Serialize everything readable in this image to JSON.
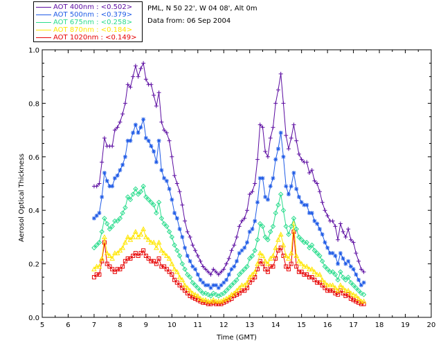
{
  "legend": [
    {
      "label": "AOT  400nm : <0.502>",
      "color": "#5a0aa0"
    },
    {
      "label": "AOT  500nm : <0.379>",
      "color": "#1e5ae6"
    },
    {
      "label": "AOT  675nm : <0.258>",
      "color": "#28dc8c"
    },
    {
      "label": "AOT  870nm : <0.184>",
      "color": "#ffe600"
    },
    {
      "label": "AOT 1020nm : <0.149>",
      "color": "#e60000"
    }
  ],
  "info": {
    "location": "PML, N 50 22', W 04 08', Alt 0m",
    "date": "Data from: 06 Sep 2004"
  },
  "chart_data": {
    "type": "line",
    "title": "",
    "xlabel": "Time (GMT)",
    "ylabel": "Aerosol Optical Thickness",
    "xlim": [
      5,
      20
    ],
    "ylim": [
      0.0,
      1.0
    ],
    "xticks": [
      "5",
      "6",
      "7",
      "8",
      "9",
      "10",
      "11",
      "12",
      "13",
      "14",
      "15",
      "16",
      "17",
      "18",
      "19",
      "20"
    ],
    "yticks": [
      "0.0",
      "0.2",
      "0.4",
      "0.6",
      "0.8",
      "1.0"
    ],
    "x": [
      7.0,
      7.1,
      7.2,
      7.3,
      7.4,
      7.5,
      7.6,
      7.7,
      7.8,
      7.9,
      8.0,
      8.1,
      8.2,
      8.3,
      8.4,
      8.5,
      8.6,
      8.7,
      8.8,
      8.9,
      9.0,
      9.1,
      9.2,
      9.3,
      9.4,
      9.5,
      9.6,
      9.7,
      9.8,
      9.9,
      10.0,
      10.1,
      10.2,
      10.3,
      10.4,
      10.5,
      10.6,
      10.7,
      10.8,
      10.9,
      11.0,
      11.1,
      11.2,
      11.3,
      11.4,
      11.5,
      11.6,
      11.7,
      11.8,
      11.9,
      12.0,
      12.1,
      12.2,
      12.3,
      12.4,
      12.5,
      12.6,
      12.7,
      12.8,
      12.9,
      13.0,
      13.1,
      13.2,
      13.3,
      13.4,
      13.5,
      13.6,
      13.7,
      13.8,
      13.9,
      14.0,
      14.1,
      14.2,
      14.3,
      14.4,
      14.5,
      14.6,
      14.7,
      14.8,
      14.9,
      15.0,
      15.1,
      15.2,
      15.3,
      15.4,
      15.5,
      15.6,
      15.7,
      15.8,
      15.9,
      16.0,
      16.1,
      16.2,
      16.3,
      16.4,
      16.5,
      16.6,
      16.7,
      16.8,
      16.9,
      17.0,
      17.1,
      17.2,
      17.3,
      17.4
    ],
    "series": [
      {
        "name": "AOT 400nm",
        "color": "#5a0aa0",
        "marker": "plus",
        "values": [
          0.49,
          0.49,
          0.5,
          0.58,
          0.67,
          0.64,
          0.64,
          0.64,
          0.7,
          0.71,
          0.73,
          0.76,
          0.8,
          0.87,
          0.86,
          0.9,
          0.94,
          0.9,
          0.93,
          0.95,
          0.89,
          0.87,
          0.87,
          0.83,
          0.79,
          0.84,
          0.73,
          0.7,
          0.69,
          0.66,
          0.6,
          0.53,
          0.5,
          0.47,
          0.42,
          0.36,
          0.32,
          0.3,
          0.27,
          0.25,
          0.23,
          0.21,
          0.19,
          0.18,
          0.17,
          0.16,
          0.18,
          0.17,
          0.16,
          0.17,
          0.18,
          0.2,
          0.22,
          0.25,
          0.27,
          0.3,
          0.34,
          0.36,
          0.37,
          0.4,
          0.46,
          0.47,
          0.5,
          0.59,
          0.72,
          0.71,
          0.62,
          0.6,
          0.67,
          0.71,
          0.8,
          0.85,
          0.91,
          0.8,
          0.68,
          0.63,
          0.67,
          0.72,
          0.66,
          0.61,
          0.59,
          0.58,
          0.58,
          0.54,
          0.55,
          0.51,
          0.5,
          0.47,
          0.43,
          0.4,
          0.38,
          0.36,
          0.36,
          0.34,
          0.29,
          0.35,
          0.32,
          0.3,
          0.33,
          0.29,
          0.28,
          0.24,
          0.21,
          0.18,
          0.17
        ]
      },
      {
        "name": "AOT 500nm",
        "color": "#1e5ae6",
        "marker": "star",
        "values": [
          0.37,
          0.38,
          0.39,
          0.45,
          0.54,
          0.51,
          0.49,
          0.49,
          0.52,
          0.53,
          0.55,
          0.57,
          0.6,
          0.66,
          0.66,
          0.69,
          0.72,
          0.69,
          0.71,
          0.74,
          0.67,
          0.66,
          0.64,
          0.62,
          0.58,
          0.66,
          0.55,
          0.52,
          0.51,
          0.48,
          0.44,
          0.39,
          0.37,
          0.33,
          0.3,
          0.26,
          0.23,
          0.21,
          0.19,
          0.18,
          0.16,
          0.14,
          0.13,
          0.12,
          0.12,
          0.11,
          0.12,
          0.12,
          0.11,
          0.12,
          0.13,
          0.14,
          0.16,
          0.18,
          0.19,
          0.21,
          0.24,
          0.25,
          0.26,
          0.28,
          0.32,
          0.33,
          0.36,
          0.43,
          0.52,
          0.52,
          0.45,
          0.44,
          0.49,
          0.52,
          0.59,
          0.63,
          0.69,
          0.6,
          0.49,
          0.46,
          0.49,
          0.54,
          0.48,
          0.45,
          0.43,
          0.42,
          0.42,
          0.39,
          0.39,
          0.36,
          0.35,
          0.33,
          0.31,
          0.28,
          0.26,
          0.24,
          0.24,
          0.23,
          0.2,
          0.24,
          0.22,
          0.2,
          0.21,
          0.19,
          0.18,
          0.16,
          0.14,
          0.12,
          0.13
        ]
      },
      {
        "name": "AOT 675nm",
        "color": "#28dc8c",
        "marker": "diamond",
        "values": [
          0.26,
          0.27,
          0.28,
          0.32,
          0.37,
          0.35,
          0.33,
          0.34,
          0.36,
          0.36,
          0.37,
          0.39,
          0.41,
          0.45,
          0.44,
          0.46,
          0.48,
          0.46,
          0.47,
          0.49,
          0.45,
          0.44,
          0.43,
          0.42,
          0.39,
          0.43,
          0.37,
          0.35,
          0.34,
          0.32,
          0.3,
          0.27,
          0.25,
          0.23,
          0.2,
          0.18,
          0.16,
          0.15,
          0.13,
          0.12,
          0.11,
          0.1,
          0.09,
          0.09,
          0.085,
          0.08,
          0.09,
          0.085,
          0.08,
          0.085,
          0.09,
          0.1,
          0.11,
          0.12,
          0.13,
          0.14,
          0.16,
          0.17,
          0.18,
          0.19,
          0.22,
          0.23,
          0.25,
          0.29,
          0.35,
          0.34,
          0.3,
          0.29,
          0.32,
          0.34,
          0.39,
          0.42,
          0.46,
          0.4,
          0.34,
          0.31,
          0.34,
          0.37,
          0.33,
          0.3,
          0.29,
          0.28,
          0.28,
          0.26,
          0.27,
          0.25,
          0.24,
          0.23,
          0.21,
          0.19,
          0.18,
          0.17,
          0.17,
          0.16,
          0.14,
          0.17,
          0.15,
          0.14,
          0.15,
          0.13,
          0.12,
          0.11,
          0.1,
          0.09,
          0.085
        ]
      },
      {
        "name": "AOT 870nm",
        "color": "#ffe600",
        "marker": "triangle",
        "values": [
          0.18,
          0.19,
          0.19,
          0.22,
          0.3,
          0.24,
          0.23,
          0.22,
          0.24,
          0.24,
          0.25,
          0.26,
          0.28,
          0.3,
          0.29,
          0.3,
          0.32,
          0.3,
          0.31,
          0.33,
          0.3,
          0.29,
          0.28,
          0.28,
          0.26,
          0.28,
          0.25,
          0.24,
          0.23,
          0.22,
          0.2,
          0.18,
          0.17,
          0.15,
          0.14,
          0.12,
          0.11,
          0.1,
          0.09,
          0.085,
          0.08,
          0.07,
          0.065,
          0.065,
          0.06,
          0.06,
          0.065,
          0.06,
          0.06,
          0.06,
          0.065,
          0.07,
          0.075,
          0.085,
          0.09,
          0.1,
          0.11,
          0.12,
          0.12,
          0.13,
          0.15,
          0.16,
          0.17,
          0.2,
          0.24,
          0.23,
          0.21,
          0.2,
          0.22,
          0.23,
          0.26,
          0.29,
          0.31,
          0.27,
          0.23,
          0.22,
          0.24,
          0.35,
          0.23,
          0.21,
          0.2,
          0.19,
          0.19,
          0.18,
          0.18,
          0.17,
          0.16,
          0.16,
          0.14,
          0.13,
          0.12,
          0.12,
          0.12,
          0.11,
          0.1,
          0.12,
          0.11,
          0.1,
          0.1,
          0.09,
          0.085,
          0.08,
          0.07,
          0.06,
          0.06
        ]
      },
      {
        "name": "AOT 1020nm",
        "color": "#e60000",
        "marker": "square",
        "values": [
          0.15,
          0.16,
          0.16,
          0.21,
          0.28,
          0.2,
          0.19,
          0.18,
          0.17,
          0.18,
          0.18,
          0.19,
          0.21,
          0.22,
          0.22,
          0.23,
          0.24,
          0.23,
          0.24,
          0.25,
          0.23,
          0.22,
          0.21,
          0.21,
          0.2,
          0.22,
          0.19,
          0.19,
          0.18,
          0.17,
          0.16,
          0.14,
          0.13,
          0.12,
          0.11,
          0.1,
          0.09,
          0.08,
          0.075,
          0.07,
          0.065,
          0.06,
          0.055,
          0.055,
          0.05,
          0.05,
          0.055,
          0.05,
          0.05,
          0.05,
          0.055,
          0.06,
          0.065,
          0.07,
          0.08,
          0.085,
          0.09,
          0.1,
          0.1,
          0.11,
          0.13,
          0.14,
          0.15,
          0.18,
          0.21,
          0.2,
          0.18,
          0.17,
          0.19,
          0.19,
          0.22,
          0.25,
          0.26,
          0.23,
          0.19,
          0.18,
          0.2,
          0.32,
          0.19,
          0.17,
          0.17,
          0.16,
          0.16,
          0.15,
          0.15,
          0.14,
          0.13,
          0.13,
          0.12,
          0.11,
          0.1,
          0.1,
          0.1,
          0.09,
          0.085,
          0.1,
          0.09,
          0.08,
          0.085,
          0.07,
          0.065,
          0.06,
          0.055,
          0.05,
          0.05
        ]
      }
    ]
  }
}
